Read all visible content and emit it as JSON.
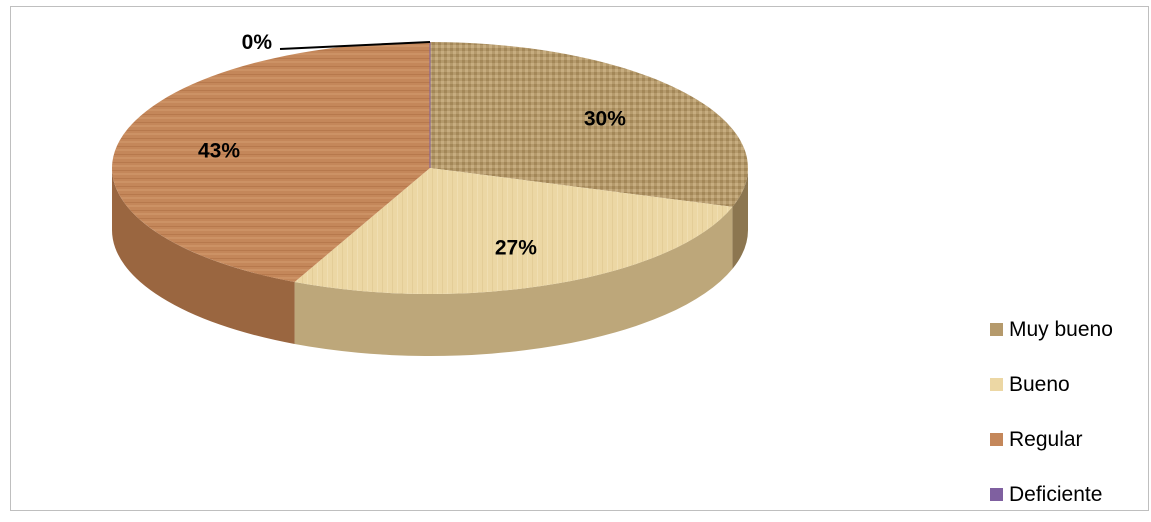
{
  "chart_data": {
    "type": "pie",
    "style": "3d",
    "categories": [
      "Muy bueno",
      "Bueno",
      "Regular",
      "Deficiente"
    ],
    "values": [
      30,
      27,
      43,
      0
    ],
    "labels": [
      "30%",
      "27%",
      "43%",
      "0%"
    ],
    "colors": [
      "#b59a6c",
      "#ecd7a4",
      "#c4875a",
      "#7f60a0"
    ],
    "side_colors": [
      "#8c7650",
      "#bda77a",
      "#9a6640",
      "#5f4578"
    ],
    "legend_position": "right"
  }
}
